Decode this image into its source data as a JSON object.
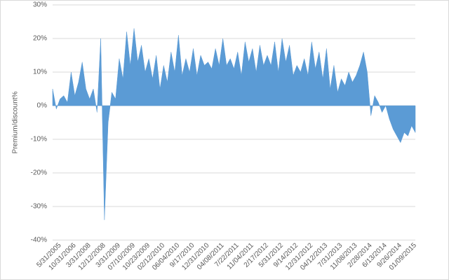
{
  "chart_data": {
    "type": "area",
    "y_label": "Premium/discount%",
    "color": "#5b9bd5",
    "grid": true,
    "ylim": [
      -40,
      30
    ],
    "yticks": [
      {
        "value": -40,
        "label": "-40%"
      },
      {
        "value": -30,
        "label": "-30%"
      },
      {
        "value": -20,
        "label": "-20%"
      },
      {
        "value": -10,
        "label": "-10%"
      },
      {
        "value": 0,
        "label": "0%"
      },
      {
        "value": 10,
        "label": "10%"
      },
      {
        "value": 20,
        "label": "20%"
      },
      {
        "value": 30,
        "label": "30%"
      }
    ],
    "categories": [
      null,
      null,
      "5/31/2005",
      null,
      null,
      null,
      "10/31/2006",
      null,
      null,
      null,
      "3/31/2008",
      null,
      null,
      null,
      "12/12/2008",
      null,
      null,
      null,
      "3/31/2009",
      null,
      null,
      null,
      "07/10/2009",
      null,
      null,
      null,
      "10/23/2009",
      null,
      null,
      null,
      "02/12/2010",
      null,
      null,
      null,
      "06/04/2010",
      null,
      null,
      null,
      "9/17/2010",
      null,
      null,
      null,
      "12/31/2010",
      null,
      null,
      null,
      "04/08/2011",
      null,
      null,
      null,
      "7/22/2011",
      null,
      null,
      null,
      "11/04/2011",
      null,
      null,
      null,
      "2/17/2012",
      null,
      null,
      null,
      "5/31/2012",
      null,
      null,
      null,
      "9/14/2012",
      null,
      null,
      null,
      "12/31/2012",
      null,
      null,
      null,
      "04/12/2013",
      null,
      null,
      null,
      "7/31/2013",
      null,
      null,
      null,
      "11/08/2013",
      null,
      null,
      null,
      "2/28/2014",
      null,
      null,
      null,
      "6/13/2014",
      null,
      null,
      null,
      "9/26/2014",
      null,
      null,
      null,
      "01/09/2015"
    ],
    "values": [
      5,
      -1,
      2,
      3,
      1,
      10,
      3,
      7,
      13,
      5,
      2,
      5,
      -2,
      20,
      -34,
      -5,
      4,
      2,
      14,
      8,
      22,
      12,
      23,
      13,
      18,
      10,
      14,
      8,
      15,
      5,
      12,
      7,
      16,
      10,
      21,
      9,
      14,
      10,
      17,
      9,
      15,
      12,
      13,
      11,
      17,
      12,
      20,
      12,
      14,
      11,
      16,
      9,
      19,
      13,
      17,
      10,
      18,
      12,
      15,
      12,
      19,
      10,
      20,
      13,
      18,
      9,
      12,
      10,
      14,
      9,
      19,
      11,
      16,
      8,
      17,
      5,
      12,
      4,
      8,
      6,
      10,
      7,
      9,
      12,
      16,
      10,
      -3,
      3,
      1,
      -2,
      0,
      -4,
      -7,
      -9,
      -11,
      -8,
      -9,
      -6,
      -8
    ]
  }
}
